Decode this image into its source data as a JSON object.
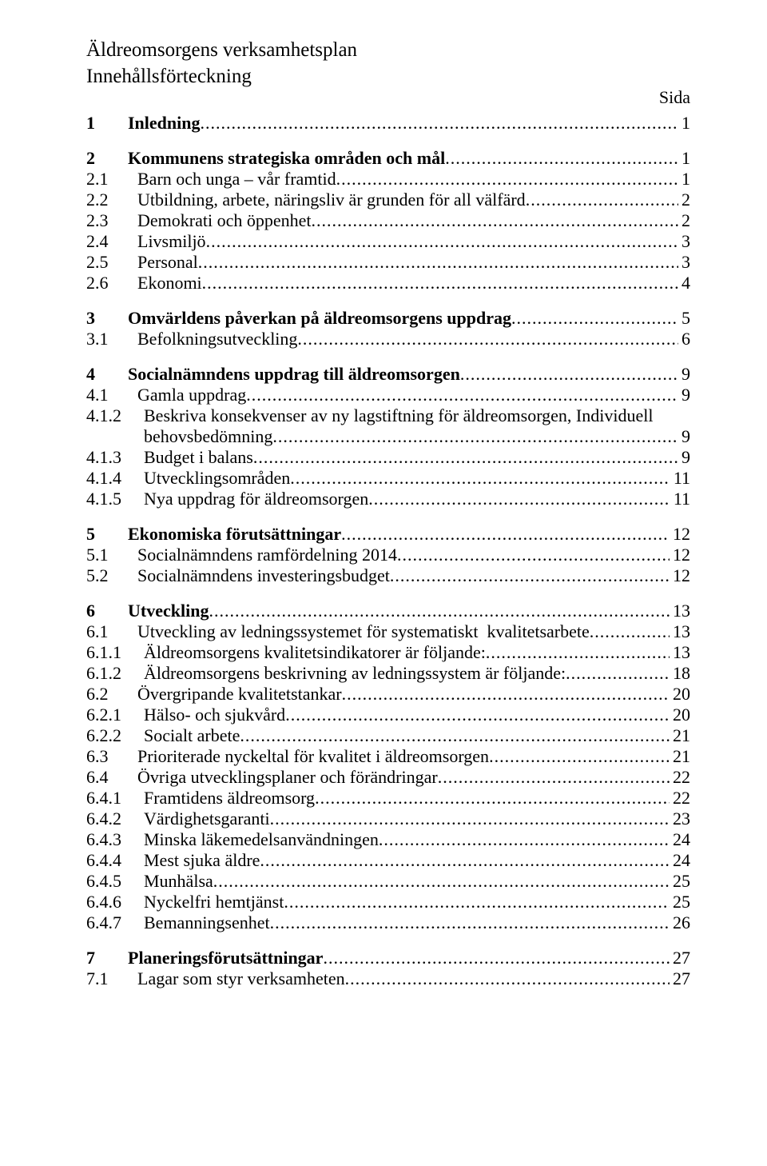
{
  "doc": {
    "title1": "Äldreomsorgens verksamhetsplan",
    "title2": "Innehållsförteckning",
    "sida": "Sida"
  },
  "toc": [
    {
      "type": "l1",
      "num": "1",
      "label": "Inledning",
      "page": "1"
    },
    {
      "type": "gap"
    },
    {
      "type": "l1",
      "num": "2",
      "label": "Kommunens strategiska områden och mål",
      "page": "1"
    },
    {
      "type": "l2",
      "num": "2.1",
      "label": "Barn och unga – vår framtid",
      "page": "1"
    },
    {
      "type": "l2",
      "num": "2.2",
      "label": "Utbildning, arbete, näringsliv är grunden för all välfärd",
      "page": "2"
    },
    {
      "type": "l2",
      "num": "2.3",
      "label": "Demokrati och öppenhet",
      "page": "2"
    },
    {
      "type": "l2",
      "num": "2.4",
      "label": "Livsmiljö",
      "page": "3"
    },
    {
      "type": "l2",
      "num": "2.5",
      "label": "Personal",
      "page": "3"
    },
    {
      "type": "l2",
      "num": "2.6",
      "label": "Ekonomi",
      "page": "4"
    },
    {
      "type": "gap"
    },
    {
      "type": "l1",
      "num": "3",
      "label": "Omvärldens påverkan på äldreomsorgens uppdrag",
      "page": "5"
    },
    {
      "type": "l2",
      "num": "3.1",
      "label": "Befolkningsutveckling",
      "page": "6"
    },
    {
      "type": "gap"
    },
    {
      "type": "l1",
      "num": "4",
      "label": "Socialnämndens uppdrag till äldreomsorgen",
      "page": "9"
    },
    {
      "type": "l2",
      "num": "4.1",
      "label": "Gamla uppdrag",
      "page": "9"
    },
    {
      "type": "l2wrap",
      "num": "4.1.2",
      "label": "Beskriva konsekvenser av ny lagstiftning för äldreomsorgen, Individuell",
      "label2": "behovsbedömning",
      "page": "9"
    },
    {
      "type": "l2",
      "num": "4.1.3",
      "label": "Budget i balans",
      "page": "9"
    },
    {
      "type": "l2",
      "num": "4.1.4",
      "label": "Utvecklingsområden",
      "page": "11"
    },
    {
      "type": "l2",
      "num": "4.1.5",
      "label": "Nya uppdrag för äldreomsorgen",
      "page": "11"
    },
    {
      "type": "gap"
    },
    {
      "type": "l1",
      "num": "5",
      "label": "Ekonomiska förutsättningar",
      "page": "12"
    },
    {
      "type": "l2",
      "num": "5.1",
      "label": "Socialnämndens ramfördelning 2014",
      "page": "12"
    },
    {
      "type": "l2",
      "num": "5.2",
      "label": "Socialnämndens investeringsbudget",
      "page": "12"
    },
    {
      "type": "gap"
    },
    {
      "type": "l1",
      "num": "6",
      "label": "Utveckling",
      "page": "13"
    },
    {
      "type": "l2",
      "num": "6.1",
      "label": "Utveckling av ledningssystemet för systematiskt  kvalitetsarbete",
      "page": "13"
    },
    {
      "type": "l2",
      "num": "6.1.1",
      "label": "Äldreomsorgens kvalitetsindikatorer är följande:",
      "page": "13"
    },
    {
      "type": "l2",
      "num": "6.1.2",
      "label": "Äldreomsorgens beskrivning av ledningssystem är följande:",
      "page": "18"
    },
    {
      "type": "l2",
      "num": "6.2",
      "label": "Övergripande kvalitetstankar",
      "page": "20"
    },
    {
      "type": "l2",
      "num": "6.2.1",
      "label": "Hälso- och sjukvård",
      "page": "20"
    },
    {
      "type": "l2",
      "num": "6.2.2",
      "label": "Socialt arbete",
      "page": "21"
    },
    {
      "type": "l2",
      "num": "6.3",
      "label": "Prioriterade nyckeltal för kvalitet i äldreomsorgen",
      "page": "21"
    },
    {
      "type": "l2",
      "num": "6.4",
      "label": "Övriga utvecklingsplaner och förändringar",
      "page": "22"
    },
    {
      "type": "l2",
      "num": "6.4.1",
      "label": "Framtidens äldreomsorg",
      "page": "22"
    },
    {
      "type": "l2",
      "num": "6.4.2",
      "label": "Värdighetsgaranti",
      "page": "23"
    },
    {
      "type": "l2",
      "num": "6.4.3",
      "label": "Minska läkemedelsanvändningen",
      "page": "24"
    },
    {
      "type": "l2",
      "num": "6.4.4",
      "label": "Mest sjuka äldre",
      "page": "24"
    },
    {
      "type": "l2",
      "num": "6.4.5",
      "label": "Munhälsa",
      "page": "25"
    },
    {
      "type": "l2",
      "num": "6.4.6",
      "label": "Nyckelfri hemtjänst",
      "page": "25"
    },
    {
      "type": "l2",
      "num": "6.4.7",
      "label": "Bemanningsenhet",
      "page": "26"
    },
    {
      "type": "gap"
    },
    {
      "type": "l1",
      "num": "7",
      "label": "Planeringsförutsättningar",
      "page": "27"
    },
    {
      "type": "l2",
      "num": "7.1",
      "label": "Lagar som styr verksamheten",
      "page": "27"
    }
  ]
}
